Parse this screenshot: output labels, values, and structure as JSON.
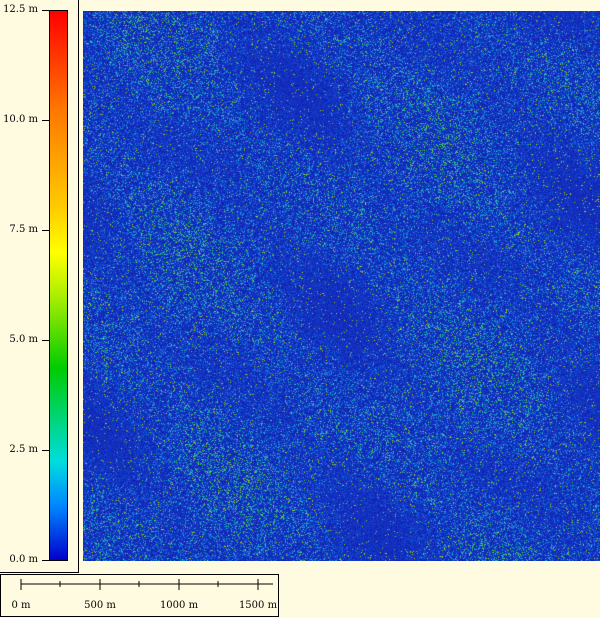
{
  "legend": {
    "labels": [
      "12.5 m",
      "10.0 m",
      "7.5 m",
      "5.0 m",
      "2.5 m",
      "0.0 m"
    ],
    "range": [
      0,
      12.5
    ],
    "unit": "m",
    "colormap": [
      "#0000cc",
      "#0088ff",
      "#00dddd",
      "#00cc00",
      "#aaee00",
      "#ffff00",
      "#ffcc00",
      "#ff7700",
      "#ff0000"
    ]
  },
  "scale_bar": {
    "labels": [
      "0 m",
      "500 m",
      "1000 m",
      "1500 m"
    ]
  },
  "colors": {
    "background": "#fffbe0",
    "map_base": "#141bb0"
  }
}
